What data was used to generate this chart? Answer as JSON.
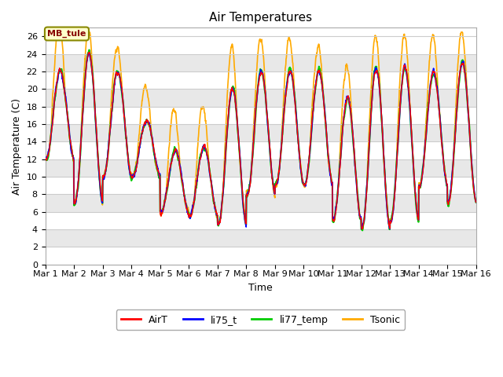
{
  "title": "Air Temperatures",
  "xlabel": "Time",
  "ylabel": "Air Temperature (C)",
  "ylim": [
    0,
    27
  ],
  "yticks": [
    0,
    2,
    4,
    6,
    8,
    10,
    12,
    14,
    16,
    18,
    20,
    22,
    24,
    26
  ],
  "xtick_labels": [
    "Mar 1",
    "Mar 2",
    "Mar 3",
    "Mar 4",
    "Mar 5",
    "Mar 6",
    "Mar 7",
    "Mar 8",
    "Mar 9",
    "Mar 10",
    "Mar 11",
    "Mar 12",
    "Mar 13",
    "Mar 14",
    "Mar 15",
    "Mar 16"
  ],
  "series_colors": {
    "AirT": "#ff0000",
    "li75_t": "#0000ff",
    "li77_temp": "#00cc00",
    "Tsonic": "#ffaa00"
  },
  "series_linewidths": {
    "AirT": 1.0,
    "li75_t": 1.2,
    "li77_temp": 1.5,
    "Tsonic": 1.2
  },
  "annotation_text": "MB_tule",
  "annotation_color": "#880000",
  "band_colors": [
    "#ffffff",
    "#e8e8e8"
  ],
  "fig_bg_color": "#ffffff",
  "plot_bg_color": "#ffffff",
  "grid_color": "#cccccc",
  "title_fontsize": 11,
  "axis_fontsize": 9,
  "tick_fontsize": 8
}
